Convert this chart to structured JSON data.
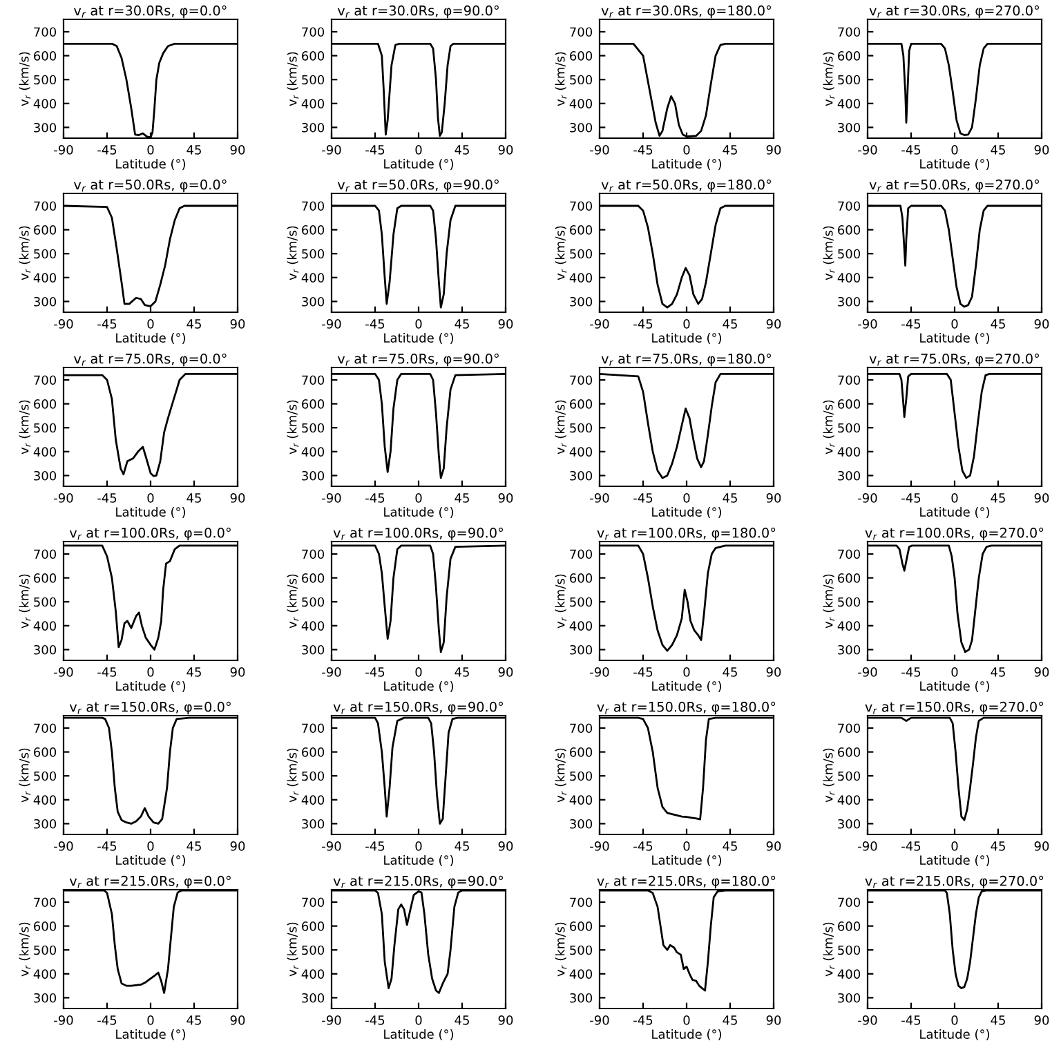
{
  "chart_data": [
    {
      "type": "line",
      "title": "v$_{r}$ at r=30.0Rs, φ=0.0°",
      "xlabel": "Latitude (°)",
      "ylabel": "v$_{r}$ (km/s)",
      "xlim": [
        -90,
        90
      ],
      "xticks": [
        -90,
        -45,
        0,
        45,
        90
      ],
      "ylim": [
        255,
        752
      ],
      "yticks": [
        300,
        400,
        500,
        600,
        700
      ],
      "color": "#000000",
      "x": [
        -90,
        -40,
        -35,
        -30,
        -25,
        -20,
        -16,
        -12,
        -8,
        -4,
        0,
        2,
        4,
        6,
        9,
        13,
        18,
        25,
        90
      ],
      "values": [
        650,
        650,
        640,
        590,
        500,
        380,
        270,
        268,
        275,
        262,
        258,
        280,
        380,
        500,
        570,
        610,
        640,
        650,
        650
      ]
    },
    {
      "type": "line",
      "title": "v$_{r}$ at r=30.0Rs, φ=90.0°",
      "xlabel": "Latitude (°)",
      "ylabel": "v$_{r}$ (km/s)",
      "xlim": [
        -90,
        90
      ],
      "xticks": [
        -90,
        -45,
        0,
        45,
        90
      ],
      "ylim": [
        255,
        752
      ],
      "yticks": [
        300,
        400,
        500,
        600,
        700
      ],
      "color": "#000000",
      "x": [
        -90,
        -42,
        -38,
        -36,
        -34,
        -32,
        -28,
        -24,
        -20,
        12,
        15,
        18,
        20,
        22,
        24,
        27,
        30,
        33,
        36,
        90
      ],
      "values": [
        650,
        650,
        600,
        450,
        270,
        330,
        560,
        645,
        650,
        650,
        630,
        500,
        340,
        265,
        280,
        400,
        560,
        640,
        650,
        650
      ]
    },
    {
      "type": "line",
      "title": "v$_{r}$ at r=30.0Rs, φ=180.0°",
      "xlabel": "Latitude (°)",
      "ylabel": "v$_{r}$ (km/s)",
      "xlim": [
        -90,
        90
      ],
      "xticks": [
        -90,
        -45,
        0,
        45,
        90
      ],
      "ylim": [
        255,
        752
      ],
      "yticks": [
        300,
        400,
        500,
        600,
        700
      ],
      "color": "#000000",
      "x": [
        -90,
        -55,
        -45,
        -38,
        -32,
        -28,
        -25,
        -20,
        -16,
        -12,
        -8,
        -4,
        0,
        10,
        15,
        20,
        25,
        30,
        35,
        40,
        90
      ],
      "values": [
        650,
        650,
        600,
        450,
        320,
        265,
        285,
        380,
        430,
        400,
        310,
        270,
        262,
        265,
        285,
        350,
        480,
        600,
        645,
        650,
        650
      ]
    },
    {
      "type": "line",
      "title": "v$_{r}$ at r=30.0Rs, φ=270.0°",
      "xlabel": "Latitude (°)",
      "ylabel": "v$_{r}$ (km/s)",
      "xlim": [
        -90,
        90
      ],
      "xticks": [
        -90,
        -45,
        0,
        45,
        90
      ],
      "ylim": [
        255,
        752
      ],
      "yticks": [
        300,
        400,
        500,
        600,
        700
      ],
      "color": "#000000",
      "x": [
        -90,
        -55,
        -53,
        -51,
        -50,
        -49,
        -47,
        -45,
        -14,
        -10,
        -6,
        -2,
        2,
        6,
        10,
        14,
        18,
        22,
        26,
        30,
        34,
        90
      ],
      "values": [
        650,
        650,
        600,
        450,
        320,
        420,
        620,
        650,
        650,
        630,
        560,
        450,
        330,
        275,
        268,
        270,
        300,
        420,
        560,
        630,
        650,
        650
      ]
    },
    {
      "type": "line",
      "title": "v$_{r}$ at r=50.0Rs, φ=0.0°",
      "xlabel": "Latitude (°)",
      "ylabel": "v$_{r}$ (km/s)",
      "xlim": [
        -90,
        90
      ],
      "xticks": [
        -90,
        -45,
        0,
        45,
        90
      ],
      "ylim": [
        255,
        752
      ],
      "yticks": [
        300,
        400,
        500,
        600,
        700
      ],
      "color": "#000000",
      "x": [
        -90,
        -45,
        -40,
        -35,
        -30,
        -27,
        -22,
        -15,
        -10,
        -6,
        0,
        5,
        10,
        15,
        20,
        25,
        30,
        35,
        90
      ],
      "values": [
        700,
        695,
        650,
        520,
        380,
        290,
        290,
        315,
        310,
        285,
        280,
        300,
        370,
        450,
        560,
        640,
        690,
        700,
        700
      ]
    },
    {
      "type": "line",
      "title": "v$_{r}$ at r=50.0Rs, φ=90.0°",
      "xlabel": "Latitude (°)",
      "ylabel": "v$_{r}$ (km/s)",
      "xlim": [
        -90,
        90
      ],
      "xticks": [
        -90,
        -45,
        0,
        45,
        90
      ],
      "ylim": [
        255,
        752
      ],
      "yticks": [
        300,
        400,
        500,
        600,
        700
      ],
      "color": "#000000",
      "x": [
        -90,
        -45,
        -41,
        -38,
        -35,
        -33,
        -30,
        -26,
        -22,
        -18,
        12,
        15,
        18,
        21,
        23,
        26,
        29,
        33,
        38,
        90
      ],
      "values": [
        700,
        700,
        680,
        580,
        400,
        290,
        380,
        580,
        690,
        700,
        700,
        680,
        560,
        380,
        275,
        330,
        500,
        640,
        700,
        700
      ]
    },
    {
      "type": "line",
      "title": "v$_{r}$ at r=50.0Rs, φ=180.0°",
      "xlabel": "Latitude (°)",
      "ylabel": "v$_{r}$ (km/s)",
      "xlim": [
        -90,
        90
      ],
      "xticks": [
        -90,
        -45,
        0,
        45,
        90
      ],
      "ylim": [
        255,
        752
      ],
      "yticks": [
        300,
        400,
        500,
        600,
        700
      ],
      "color": "#000000",
      "x": [
        -90,
        -50,
        -45,
        -40,
        -35,
        -30,
        -25,
        -20,
        -15,
        -10,
        -5,
        -1,
        3,
        7,
        12,
        16,
        20,
        25,
        30,
        35,
        40,
        90
      ],
      "values": [
        700,
        700,
        680,
        610,
        500,
        370,
        290,
        275,
        290,
        330,
        400,
        440,
        410,
        330,
        290,
        310,
        380,
        500,
        620,
        690,
        700,
        700
      ]
    },
    {
      "type": "line",
      "title": "v$_{r}$ at r=50.0Rs, φ=270.0°",
      "xlabel": "Latitude (°)",
      "ylabel": "v$_{r}$ (km/s)",
      "xlim": [
        -90,
        90
      ],
      "xticks": [
        -90,
        -45,
        0,
        45,
        90
      ],
      "ylim": [
        255,
        752
      ],
      "yticks": [
        300,
        400,
        500,
        600,
        700
      ],
      "color": "#000000",
      "x": [
        -90,
        -56,
        -54,
        -52,
        -51,
        -50,
        -48,
        -45,
        -14,
        -10,
        -6,
        -2,
        2,
        6,
        10,
        14,
        18,
        22,
        26,
        30,
        34,
        90
      ],
      "values": [
        700,
        700,
        650,
        520,
        450,
        560,
        690,
        700,
        700,
        680,
        600,
        480,
        360,
        290,
        278,
        285,
        320,
        450,
        600,
        680,
        700,
        700
      ]
    },
    {
      "type": "line",
      "title": "v$_{r}$ at r=75.0Rs, φ=0.0°",
      "xlabel": "Latitude (°)",
      "ylabel": "v$_{r}$ (km/s)",
      "xlim": [
        -90,
        90
      ],
      "xticks": [
        -90,
        -45,
        0,
        45,
        90
      ],
      "ylim": [
        255,
        752
      ],
      "yticks": [
        300,
        400,
        500,
        600,
        700
      ],
      "color": "#000000",
      "x": [
        -90,
        -50,
        -45,
        -40,
        -36,
        -31,
        -28,
        -24,
        -18,
        -13,
        -8,
        -5,
        0,
        3,
        6,
        10,
        14,
        18,
        24,
        30,
        36,
        90
      ],
      "values": [
        720,
        720,
        700,
        620,
        450,
        330,
        305,
        360,
        372,
        400,
        420,
        380,
        310,
        298,
        300,
        360,
        480,
        540,
        620,
        700,
        725,
        725
      ]
    },
    {
      "type": "line",
      "title": "v$_{r}$ at r=75.0Rs, φ=90.0°",
      "xlabel": "Latitude (°)",
      "ylabel": "v$_{r}$ (km/s)",
      "xlim": [
        -90,
        90
      ],
      "xticks": [
        -90,
        -45,
        0,
        45,
        90
      ],
      "ylim": [
        255,
        752
      ],
      "yticks": [
        300,
        400,
        500,
        600,
        700
      ],
      "color": "#000000",
      "x": [
        -90,
        -45,
        -41,
        -38,
        -35,
        -32,
        -29,
        -26,
        -22,
        -18,
        12,
        15,
        18,
        21,
        23,
        26,
        29,
        33,
        38,
        90
      ],
      "values": [
        725,
        725,
        700,
        600,
        420,
        315,
        400,
        580,
        700,
        725,
        725,
        700,
        560,
        380,
        290,
        330,
        500,
        660,
        720,
        725
      ]
    },
    {
      "type": "line",
      "title": "v$_{r}$ at r=75.0Rs, φ=180.0°",
      "xlabel": "Latitude (°)",
      "ylabel": "v$_{r}$ (km/s)",
      "xlim": [
        -90,
        90
      ],
      "xticks": [
        -90,
        -45,
        0,
        45,
        90
      ],
      "ylim": [
        255,
        752
      ],
      "yticks": [
        300,
        400,
        500,
        600,
        700
      ],
      "color": "#000000",
      "x": [
        -90,
        -50,
        -45,
        -40,
        -35,
        -30,
        -25,
        -20,
        -15,
        -10,
        -5,
        -1,
        3,
        7,
        11,
        15,
        18,
        22,
        26,
        30,
        35,
        90
      ],
      "values": [
        725,
        715,
        650,
        520,
        400,
        320,
        290,
        300,
        350,
        420,
        510,
        580,
        540,
        450,
        370,
        335,
        360,
        470,
        590,
        690,
        725,
        725
      ]
    },
    {
      "type": "line",
      "title": "v$_{r}$ at r=75.0Rs, φ=270.0°",
      "xlabel": "Latitude (°)",
      "ylabel": "v$_{r}$ (km/s)",
      "xlim": [
        -90,
        90
      ],
      "xticks": [
        -90,
        -45,
        0,
        45,
        90
      ],
      "ylim": [
        255,
        752
      ],
      "yticks": [
        300,
        400,
        500,
        600,
        700
      ],
      "color": "#000000",
      "x": [
        -90,
        -57,
        -55,
        -53,
        -52,
        -50,
        -48,
        -45,
        -8,
        -4,
        0,
        4,
        8,
        12,
        16,
        20,
        24,
        28,
        32,
        36,
        90
      ],
      "values": [
        725,
        725,
        700,
        600,
        545,
        620,
        715,
        725,
        725,
        700,
        560,
        420,
        320,
        290,
        300,
        380,
        520,
        650,
        720,
        725,
        725
      ]
    },
    {
      "type": "line",
      "title": "v$_{r}$ at r=100.0Rs, φ=0.0°",
      "xlabel": "Latitude (°)",
      "ylabel": "v$_{r}$ (km/s)",
      "xlim": [
        -90,
        90
      ],
      "xticks": [
        -90,
        -45,
        0,
        45,
        90
      ],
      "ylim": [
        255,
        752
      ],
      "yticks": [
        300,
        400,
        500,
        600,
        700
      ],
      "color": "#000000",
      "x": [
        -90,
        -50,
        -45,
        -40,
        -36,
        -33,
        -30,
        -27,
        -24,
        -20,
        -15,
        -12,
        -9,
        -5,
        0,
        4,
        8,
        11,
        13,
        16,
        20,
        25,
        30,
        90
      ],
      "values": [
        735,
        735,
        690,
        600,
        460,
        310,
        340,
        410,
        420,
        390,
        440,
        455,
        400,
        350,
        320,
        300,
        350,
        420,
        550,
        660,
        670,
        720,
        735,
        735
      ]
    },
    {
      "type": "line",
      "title": "v$_{r}$ at r=100.0Rs, φ=90.0°",
      "xlabel": "Latitude (°)",
      "ylabel": "v$_{r}$ (km/s)",
      "xlim": [
        -90,
        90
      ],
      "xticks": [
        -90,
        -45,
        0,
        45,
        90
      ],
      "ylim": [
        255,
        752
      ],
      "yticks": [
        300,
        400,
        500,
        600,
        700
      ],
      "color": "#000000",
      "x": [
        -90,
        -45,
        -41,
        -38,
        -35,
        -32,
        -29,
        -26,
        -22,
        -18,
        12,
        15,
        18,
        21,
        23,
        26,
        29,
        33,
        38,
        90
      ],
      "values": [
        735,
        735,
        700,
        620,
        480,
        345,
        420,
        600,
        720,
        735,
        735,
        700,
        560,
        380,
        290,
        330,
        520,
        680,
        730,
        735
      ]
    },
    {
      "type": "line",
      "title": "v$_{r}$ at r=100.0Rs, φ=180.0°",
      "xlabel": "Latitude (°)",
      "ylabel": "v$_{r}$ (km/s)",
      "xlim": [
        -90,
        90
      ],
      "xticks": [
        -90,
        -45,
        0,
        45,
        90
      ],
      "ylim": [
        255,
        752
      ],
      "yticks": [
        300,
        400,
        500,
        600,
        700
      ],
      "color": "#000000",
      "x": [
        -90,
        -50,
        -45,
        -40,
        -35,
        -30,
        -25,
        -20,
        -15,
        -10,
        -5,
        -2,
        1,
        4,
        8,
        12,
        15,
        18,
        22,
        26,
        30,
        40,
        90
      ],
      "values": [
        735,
        735,
        700,
        600,
        480,
        380,
        320,
        295,
        320,
        360,
        430,
        550,
        500,
        420,
        380,
        360,
        340,
        450,
        620,
        700,
        725,
        735,
        735
      ]
    },
    {
      "type": "line",
      "title": "v$_{r}$ at r=100.0Rs, φ=270.0°",
      "xlabel": "Latitude (°)",
      "ylabel": "v$_{r}$ (km/s)",
      "xlim": [
        -90,
        90
      ],
      "xticks": [
        -90,
        -45,
        0,
        45,
        90
      ],
      "ylim": [
        255,
        752
      ],
      "yticks": [
        300,
        400,
        500,
        600,
        700
      ],
      "color": "#000000",
      "x": [
        -90,
        -60,
        -57,
        -54,
        -52,
        -50,
        -47,
        -44,
        -6,
        -3,
        0,
        3,
        7,
        11,
        15,
        18,
        21,
        25,
        29,
        33,
        38,
        90
      ],
      "values": [
        735,
        735,
        720,
        660,
        630,
        670,
        730,
        735,
        735,
        690,
        600,
        450,
        330,
        290,
        300,
        340,
        450,
        600,
        700,
        730,
        735,
        735
      ]
    },
    {
      "type": "line",
      "title": "v$_{r}$ at r=150.0Rs, φ=0.0°",
      "xlabel": "Latitude (°)",
      "ylabel": "v$_{r}$ (km/s)",
      "xlim": [
        -90,
        90
      ],
      "xticks": [
        -90,
        -45,
        0,
        45,
        90
      ],
      "ylim": [
        255,
        752
      ],
      "yticks": [
        300,
        400,
        500,
        600,
        700
      ],
      "color": "#000000",
      "x": [
        -90,
        -50,
        -47,
        -43,
        -40,
        -37,
        -34,
        -30,
        -25,
        -20,
        -15,
        -10,
        -6,
        -2,
        3,
        8,
        12,
        17,
        20,
        23,
        27,
        40,
        90
      ],
      "values": [
        743,
        743,
        738,
        700,
        600,
        450,
        350,
        315,
        305,
        300,
        310,
        330,
        365,
        330,
        305,
        300,
        320,
        450,
        600,
        700,
        738,
        743,
        743
      ]
    },
    {
      "type": "line",
      "title": "v$_{r}$ at r=150.0Rs, φ=90.0°",
      "xlabel": "Latitude (°)",
      "ylabel": "v$_{r}$ (km/s)",
      "xlim": [
        -90,
        90
      ],
      "xticks": [
        -90,
        -45,
        0,
        45,
        90
      ],
      "ylim": [
        255,
        752
      ],
      "yticks": [
        300,
        400,
        500,
        600,
        700
      ],
      "color": "#000000",
      "x": [
        -90,
        -45,
        -42,
        -38,
        -35,
        -33,
        -30,
        -27,
        -22,
        -15,
        10,
        13,
        16,
        19,
        22,
        25,
        28,
        31,
        35,
        40,
        90
      ],
      "values": [
        743,
        743,
        720,
        600,
        450,
        330,
        450,
        620,
        730,
        743,
        743,
        720,
        600,
        420,
        300,
        320,
        500,
        680,
        738,
        743,
        743
      ]
    },
    {
      "type": "line",
      "title": "v$_{r}$ at r=150.0Rs, φ=180.0°",
      "xlabel": "Latitude (°)",
      "ylabel": "v$_{r}$ (km/s)",
      "xlim": [
        -90,
        90
      ],
      "xticks": [
        -90,
        -45,
        0,
        45,
        90
      ],
      "ylim": [
        255,
        752
      ],
      "yticks": [
        300,
        400,
        500,
        600,
        700
      ],
      "color": "#000000",
      "x": [
        -90,
        -50,
        -45,
        -40,
        -35,
        -30,
        -25,
        -20,
        -15,
        -10,
        -5,
        0,
        5,
        10,
        14,
        17,
        20,
        23,
        30,
        90
      ],
      "values": [
        743,
        743,
        738,
        700,
        600,
        450,
        370,
        345,
        340,
        335,
        330,
        328,
        325,
        322,
        318,
        450,
        650,
        738,
        743,
        743
      ]
    },
    {
      "type": "line",
      "title": "v$_{r}$ at r=150.0Rs, φ=270.0°",
      "xlabel": "Latitude (°)",
      "ylabel": "v$_{r}$ (km/s)",
      "xlim": [
        -90,
        90
      ],
      "xticks": [
        -90,
        -45,
        0,
        45,
        90
      ],
      "ylim": [
        255,
        752
      ],
      "yticks": [
        300,
        400,
        500,
        600,
        700
      ],
      "color": "#000000",
      "x": [
        -90,
        -55,
        -50,
        -45,
        -5,
        -2,
        1,
        4,
        7,
        10,
        13,
        16,
        19,
        22,
        25,
        30,
        90
      ],
      "values": [
        743,
        743,
        730,
        743,
        743,
        720,
        600,
        450,
        330,
        315,
        360,
        450,
        550,
        660,
        730,
        743,
        743
      ]
    },
    {
      "type": "line",
      "title": "v$_{r}$ at r=215.0Rs, φ=0.0°",
      "xlabel": "Latitude (°)",
      "ylabel": "v$_{r}$ (km/s)",
      "xlim": [
        -90,
        90
      ],
      "xticks": [
        -90,
        -45,
        0,
        45,
        90
      ],
      "ylim": [
        255,
        752
      ],
      "yticks": [
        300,
        400,
        500,
        600,
        700
      ],
      "color": "#000000",
      "x": [
        -90,
        -48,
        -45,
        -40,
        -37,
        -34,
        -30,
        -25,
        -20,
        -10,
        -5,
        0,
        5,
        8,
        11,
        14,
        18,
        21,
        24,
        28,
        32,
        90
      ],
      "values": [
        749,
        749,
        738,
        650,
        520,
        420,
        360,
        350,
        350,
        355,
        365,
        380,
        395,
        405,
        370,
        320,
        420,
        550,
        680,
        740,
        749,
        749
      ]
    },
    {
      "type": "line",
      "title": "v$_{r}$ at r=215.0Rs, φ=90.0°",
      "xlabel": "Latitude (°)",
      "ylabel": "v$_{r}$ (km/s)",
      "xlim": [
        -90,
        90
      ],
      "xticks": [
        -90,
        -45,
        0,
        45,
        90
      ],
      "ylim": [
        255,
        752
      ],
      "yticks": [
        300,
        400,
        500,
        600,
        700
      ],
      "color": "#000000",
      "x": [
        -90,
        -45,
        -42,
        -38,
        -35,
        -31,
        -28,
        -25,
        -21,
        -18,
        -15,
        -12,
        -9,
        -5,
        0,
        3,
        6,
        10,
        14,
        18,
        21,
        25,
        30,
        33,
        37,
        41,
        45,
        90
      ],
      "values": [
        749,
        749,
        738,
        650,
        450,
        340,
        380,
        520,
        670,
        690,
        670,
        605,
        660,
        730,
        745,
        740,
        650,
        480,
        380,
        330,
        320,
        360,
        400,
        500,
        680,
        740,
        749,
        749
      ]
    },
    {
      "type": "line",
      "title": "v$_{r}$ at r=215.0Rs, φ=180.0°",
      "xlabel": "Latitude (°)",
      "ylabel": "v$_{r}$ (km/s)",
      "xlim": [
        -90,
        90
      ],
      "xticks": [
        -90,
        -45,
        0,
        45,
        90
      ],
      "ylim": [
        255,
        752
      ],
      "yticks": [
        300,
        400,
        500,
        600,
        700
      ],
      "color": "#000000",
      "x": [
        -90,
        -40,
        -35,
        -30,
        -27,
        -24,
        -20,
        -17,
        -13,
        -10,
        -6,
        -3,
        0,
        3,
        6,
        10,
        13,
        16,
        19,
        22,
        25,
        28,
        32,
        40,
        90
      ],
      "values": [
        749,
        749,
        738,
        680,
        600,
        520,
        500,
        520,
        510,
        490,
        480,
        420,
        430,
        400,
        375,
        370,
        350,
        340,
        330,
        450,
        600,
        720,
        745,
        749,
        749
      ]
    },
    {
      "type": "line",
      "title": "v$_{r}$ at r=215.0Rs, φ=270.0°",
      "xlabel": "Latitude (°)",
      "ylabel": "v$_{r}$ (km/s)",
      "xlim": [
        -90,
        90
      ],
      "xticks": [
        -90,
        -45,
        0,
        45,
        90
      ],
      "ylim": [
        255,
        752
      ],
      "yticks": [
        300,
        400,
        500,
        600,
        700
      ],
      "color": "#000000",
      "x": [
        -90,
        -10,
        -8,
        -5,
        -2,
        1,
        4,
        7,
        10,
        13,
        16,
        19,
        22,
        25,
        28,
        32,
        90
      ],
      "values": [
        749,
        749,
        738,
        650,
        500,
        400,
        350,
        340,
        345,
        380,
        450,
        550,
        650,
        720,
        745,
        749,
        749
      ]
    }
  ]
}
